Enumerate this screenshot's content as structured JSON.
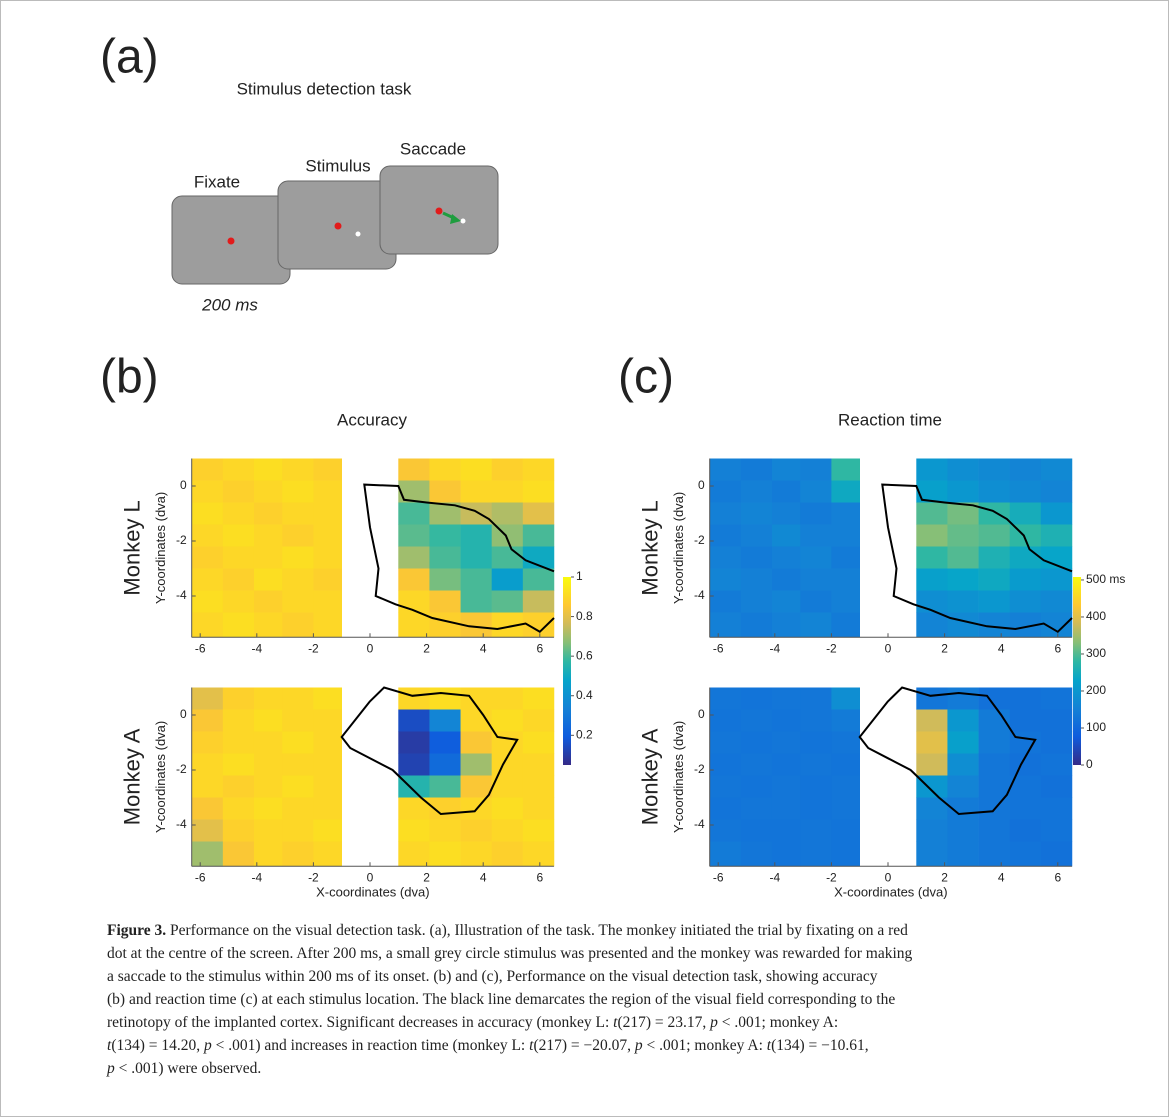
{
  "panel_a": {
    "label": "(a)",
    "title": "Stimulus detection task",
    "screens": [
      "Fixate",
      "Stimulus",
      "Saccade"
    ],
    "duration": "200 ms"
  },
  "rows": [
    "Monkey L",
    "Monkey A"
  ],
  "axes": {
    "xlabel": "X-coordinates (dva)",
    "ylabel": "Y-coordinates (dva)",
    "xlim": [
      -6.3,
      6.5
    ],
    "ylim": [
      -5.5,
      1
    ],
    "xticks": [
      -6,
      -4,
      -2,
      0,
      2,
      4,
      6
    ],
    "yticks": [
      0,
      -2,
      -4
    ],
    "x_edges": [
      -6.3,
      -5.2,
      -4.1,
      -3.1,
      -2.0,
      -1.0,
      1.0,
      2.1,
      3.2,
      4.3,
      5.4,
      6.5
    ],
    "y_edges": [
      1.0,
      0.2,
      -0.6,
      -1.4,
      -2.2,
      -3.0,
      -3.8,
      -4.6,
      -5.5
    ]
  },
  "panel_b": {
    "label": "(b)",
    "title": "Accuracy",
    "colorbar": {
      "clim": [
        0.05,
        1
      ],
      "ticks": [
        0.2,
        0.4,
        0.6,
        0.8,
        1
      ]
    },
    "maps": [
      [
        [
          0.88,
          0.9,
          0.92,
          0.9,
          0.88,
          null,
          0.85,
          0.9,
          0.92,
          0.88,
          0.9
        ],
        [
          0.9,
          0.88,
          0.9,
          0.92,
          0.9,
          null,
          0.7,
          0.85,
          0.9,
          0.9,
          0.92
        ],
        [
          0.92,
          0.9,
          0.88,
          0.9,
          0.9,
          null,
          0.6,
          0.7,
          0.75,
          0.72,
          0.8
        ],
        [
          0.9,
          0.92,
          0.9,
          0.88,
          0.9,
          null,
          0.62,
          0.58,
          0.55,
          0.68,
          0.6
        ],
        [
          0.88,
          0.9,
          0.9,
          0.92,
          0.9,
          null,
          0.7,
          0.6,
          0.55,
          0.6,
          0.5
        ],
        [
          0.9,
          0.88,
          0.92,
          0.9,
          0.88,
          null,
          0.85,
          0.65,
          0.6,
          0.45,
          0.6
        ],
        [
          0.92,
          0.9,
          0.88,
          0.9,
          0.9,
          null,
          0.9,
          0.85,
          0.6,
          0.62,
          0.75
        ],
        [
          0.9,
          0.92,
          0.9,
          0.88,
          0.9,
          null,
          0.9,
          0.88,
          0.85,
          0.9,
          0.88
        ]
      ],
      [
        [
          0.8,
          0.88,
          0.9,
          0.9,
          0.92,
          null,
          0.9,
          0.92,
          0.9,
          0.9,
          0.92
        ],
        [
          0.85,
          0.9,
          0.92,
          0.9,
          0.9,
          null,
          0.15,
          0.35,
          0.9,
          0.92,
          0.9
        ],
        [
          0.88,
          0.9,
          0.9,
          0.92,
          0.9,
          null,
          0.1,
          0.2,
          0.85,
          0.9,
          0.92
        ],
        [
          0.9,
          0.92,
          0.9,
          0.9,
          0.9,
          null,
          0.12,
          0.25,
          0.7,
          0.9,
          0.9
        ],
        [
          0.9,
          0.88,
          0.9,
          0.92,
          0.9,
          null,
          0.55,
          0.6,
          0.85,
          0.9,
          0.9
        ],
        [
          0.85,
          0.9,
          0.92,
          0.9,
          0.9,
          null,
          0.9,
          0.88,
          0.9,
          0.92,
          0.9
        ],
        [
          0.8,
          0.88,
          0.9,
          0.9,
          0.92,
          null,
          0.92,
          0.9,
          0.88,
          0.9,
          0.92
        ],
        [
          0.7,
          0.85,
          0.9,
          0.88,
          0.9,
          null,
          0.9,
          0.92,
          0.9,
          0.88,
          0.9
        ]
      ]
    ]
  },
  "panel_c": {
    "label": "(c)",
    "title": "Reaction time",
    "colorbar": {
      "clim": [
        0,
        508
      ],
      "ticks": [
        0,
        100,
        200,
        300,
        400,
        {
          "value": 500,
          "label": "500 ms"
        }
      ]
    },
    "maps": [
      [
        [
          150,
          140,
          160,
          150,
          280,
          null,
          200,
          180,
          170,
          160,
          170
        ],
        [
          140,
          150,
          140,
          160,
          240,
          null,
          220,
          200,
          180,
          170,
          160
        ],
        [
          150,
          160,
          150,
          140,
          150,
          null,
          300,
          320,
          280,
          250,
          200
        ],
        [
          140,
          150,
          170,
          150,
          150,
          null,
          330,
          310,
          300,
          280,
          260
        ],
        [
          150,
          140,
          150,
          160,
          140,
          null,
          280,
          300,
          260,
          240,
          230
        ],
        [
          160,
          150,
          140,
          150,
          150,
          null,
          220,
          230,
          240,
          210,
          200
        ],
        [
          140,
          150,
          160,
          140,
          150,
          null,
          180,
          190,
          200,
          180,
          170
        ],
        [
          150,
          140,
          150,
          160,
          140,
          null,
          160,
          170,
          160,
          150,
          160
        ]
      ],
      [
        [
          130,
          125,
          130,
          130,
          180,
          null,
          130,
          140,
          120,
          120,
          125
        ],
        [
          125,
          130,
          125,
          130,
          140,
          null,
          380,
          200,
          140,
          120,
          120
        ],
        [
          130,
          125,
          130,
          125,
          130,
          null,
          400,
          220,
          140,
          125,
          120
        ],
        [
          125,
          130,
          125,
          130,
          125,
          null,
          380,
          180,
          130,
          120,
          125
        ],
        [
          130,
          125,
          130,
          125,
          130,
          null,
          200,
          160,
          130,
          125,
          120
        ],
        [
          125,
          130,
          130,
          125,
          130,
          null,
          160,
          140,
          130,
          125,
          125
        ],
        [
          130,
          125,
          125,
          130,
          125,
          null,
          150,
          140,
          130,
          120,
          125
        ],
        [
          140,
          130,
          125,
          130,
          125,
          null,
          150,
          140,
          130,
          125,
          120
        ]
      ]
    ]
  },
  "outlines": [
    {
      "x": [
        6.5,
        5.5,
        5.0,
        4.8,
        4.2,
        3.7,
        3.0,
        2.0,
        1.2,
        1.0,
        -0.2,
        0.0,
        0.3,
        0.2,
        0.9,
        1.5,
        2.2,
        3.5,
        4.5,
        5.5,
        6.0,
        6.5
      ],
      "y": [
        -3.1,
        -2.7,
        -2.3,
        -1.8,
        -1.2,
        -0.9,
        -0.7,
        -0.6,
        -0.5,
        0.0,
        0.05,
        -1.5,
        -3.0,
        -4.0,
        -4.3,
        -4.5,
        -4.8,
        -5.1,
        -5.2,
        -5.0,
        -5.3,
        -4.8
      ]
    },
    {
      "x": [
        0.0,
        0.5,
        1.5,
        2.5,
        3.5,
        4.0,
        4.5,
        5.2,
        4.7,
        4.2,
        3.7,
        2.5,
        1.8,
        1.2,
        0.8,
        -0.7,
        -1.0,
        0.0
      ],
      "y": [
        0.5,
        1.0,
        0.7,
        0.8,
        0.7,
        0.0,
        -0.8,
        -0.9,
        -1.8,
        -2.9,
        -3.5,
        -3.6,
        -3.0,
        -2.4,
        -2.0,
        -1.2,
        -0.8,
        0.5
      ]
    }
  ],
  "caption": {
    "lines": [
      [
        {
          "text": "Figure 3.",
          "style": "bold"
        },
        {
          "text": " Performance on the visual detection task. (a), Illustration of the task. The monkey initiated the trial by fixating on a red",
          "style": "plain"
        }
      ],
      [
        {
          "text": "dot at the centre of the screen. After 200 ms, a small grey circle stimulus was presented and the monkey was rewarded for making",
          "style": "plain"
        }
      ],
      [
        {
          "text": "a saccade to the stimulus within 200 ms of its onset. (b) and (c), Performance on the visual detection task, showing accuracy",
          "style": "plain"
        }
      ],
      [
        {
          "text": "(b) and reaction time (c) at each stimulus location. The black line demarcates the region of the visual field corresponding to the",
          "style": "plain"
        }
      ],
      [
        {
          "text": "retinotopy of the implanted cortex. Significant decreases in accuracy (monkey L: ",
          "style": "plain"
        },
        {
          "text": "t",
          "style": "italic"
        },
        {
          "text": "(217) = 23.17, ",
          "style": "plain"
        },
        {
          "text": "p",
          "style": "italic"
        },
        {
          "text": " < .001; monkey A:",
          "style": "plain"
        }
      ],
      [
        {
          "text": "t",
          "style": "italic"
        },
        {
          "text": "(134) = 14.20, ",
          "style": "plain"
        },
        {
          "text": "p",
          "style": "italic"
        },
        {
          "text": " < .001) and increases in reaction time (monkey L: ",
          "style": "plain"
        },
        {
          "text": "t",
          "style": "italic"
        },
        {
          "text": "(217) = −20.07, ",
          "style": "plain"
        },
        {
          "text": "p",
          "style": "italic"
        },
        {
          "text": " < .001; monkey A: ",
          "style": "plain"
        },
        {
          "text": "t",
          "style": "italic"
        },
        {
          "text": "(134) = −10.61,",
          "style": "plain"
        }
      ],
      [
        {
          "text": "p",
          "style": "italic"
        },
        {
          "text": " < .001) were observed.",
          "style": "plain"
        }
      ]
    ]
  }
}
